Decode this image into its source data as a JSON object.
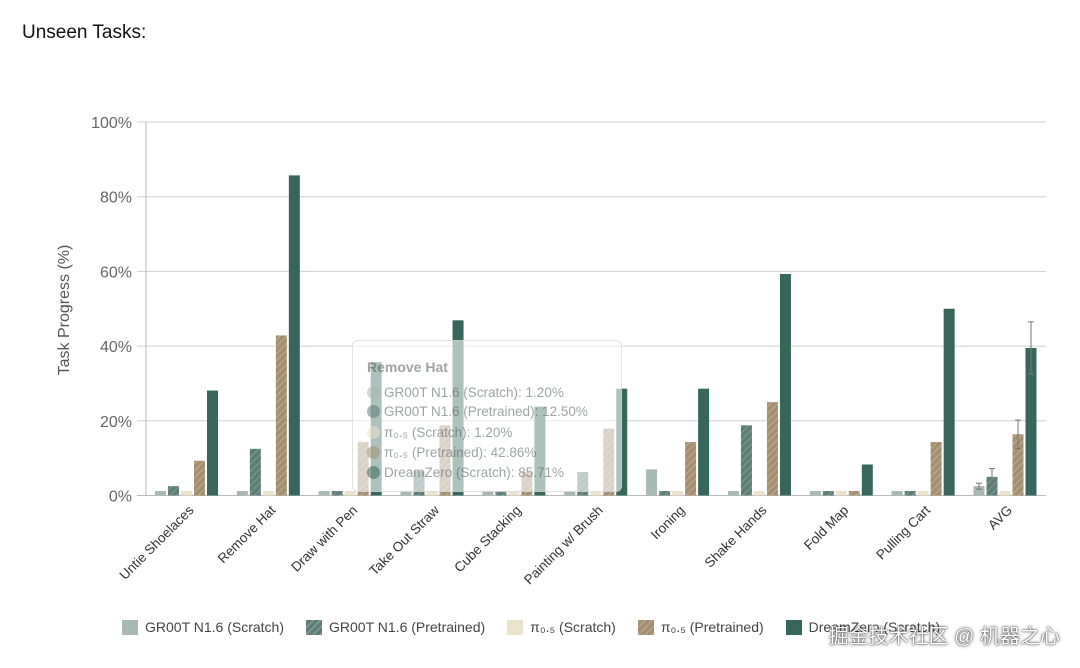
{
  "heading": "Unseen Tasks:",
  "watermark": "掘金技术社区 @ 机器之心",
  "colors": {
    "gr00t_scratch": "#a8b8b3",
    "gr00t_pretrained": "#5d7e76",
    "pi_scratch": "#ece3cc",
    "pi_pretrained": "#a48f70",
    "dreamzero": "#36675a"
  },
  "tooltip": {
    "title": "Remove Hat",
    "rows": [
      "GR00T N1.6 (Scratch): 1.20%",
      "GR00T N1.6 (Pretrained): 12.50%",
      "π₀.₅ (Scratch): 1.20%",
      "π₀.₅ (Pretrained): 42.86%",
      "DreamZero (Scratch): 85.71%"
    ]
  },
  "chart_data": {
    "type": "bar",
    "ylabel": "Task Progress (%)",
    "xlabel": "",
    "ylim": [
      0,
      100
    ],
    "yticks": [
      "0%",
      "20%",
      "40%",
      "60%",
      "80%",
      "100%"
    ],
    "grid": true,
    "legend_position": "bottom",
    "categories": [
      "Untie Shoelaces",
      "Remove Hat",
      "Draw with Pen",
      "Take Out Straw",
      "Cube Stacking",
      "Painting w/ Brush",
      "Ironing",
      "Shake Hands",
      "Fold Map",
      "Pulling Cart",
      "AVG"
    ],
    "series": [
      {
        "name": "GR00T N1.6 (Scratch)",
        "values": [
          1.2,
          1.2,
          1.2,
          1.2,
          1.2,
          1.2,
          7.0,
          1.2,
          1.2,
          1.2,
          2.5
        ]
      },
      {
        "name": "GR00T N1.6 (Pretrained)",
        "values": [
          2.5,
          12.5,
          1.2,
          6.5,
          1.2,
          6.3,
          1.2,
          18.8,
          1.2,
          1.2,
          5.0
        ]
      },
      {
        "name": "π₀.₅ (Scratch)",
        "values": [
          1.2,
          1.2,
          1.2,
          1.2,
          1.2,
          1.2,
          1.2,
          1.2,
          1.2,
          1.2,
          1.2
        ]
      },
      {
        "name": "π₀.₅ (Pretrained)",
        "values": [
          9.3,
          42.86,
          14.3,
          18.8,
          6.3,
          17.9,
          14.3,
          25.0,
          1.2,
          14.3,
          16.4
        ]
      },
      {
        "name": "DreamZero (Scratch)",
        "values": [
          28.1,
          85.71,
          35.7,
          46.9,
          23.8,
          28.6,
          28.6,
          59.3,
          8.3,
          50.0,
          39.5
        ]
      }
    ],
    "error_bars": {
      "category": "AVG",
      "series_errors": [
        0.8,
        2.2,
        0,
        3.8,
        7.0
      ]
    }
  }
}
